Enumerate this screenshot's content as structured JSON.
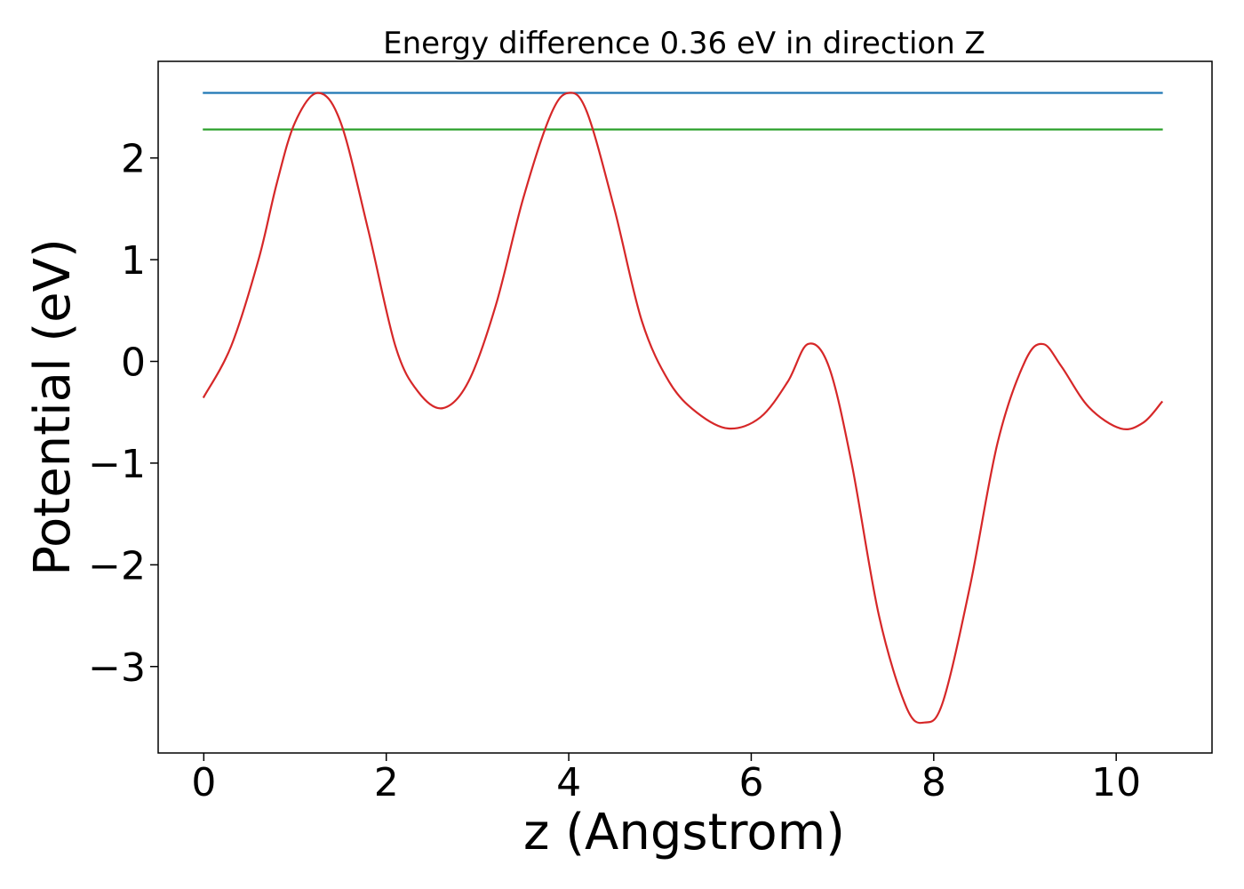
{
  "chart_data": {
    "type": "line",
    "title": "Energy difference 0.36 eV in direction Z",
    "xlabel": "z (Angstrom)",
    "ylabel": "Potential (eV)",
    "xlim": [
      -0.5,
      11.05
    ],
    "ylim": [
      -3.85,
      2.95
    ],
    "xticks": [
      0,
      2,
      4,
      6,
      8,
      10
    ],
    "xtick_labels": [
      "0",
      "2",
      "4",
      "6",
      "8",
      "10"
    ],
    "yticks": [
      -3,
      -2,
      -1,
      0,
      1,
      2
    ],
    "ytick_labels": [
      "−3",
      "−2",
      "−1",
      "0",
      "1",
      "2"
    ],
    "grid": false,
    "series": [
      {
        "color": "#1f77b4",
        "x": [
          0,
          10.5
        ],
        "y": [
          2.64,
          2.64
        ]
      },
      {
        "color": "#2ca02c",
        "x": [
          0,
          10.5
        ],
        "y": [
          2.28,
          2.28
        ]
      },
      {
        "color": "#d62728",
        "x": [
          0,
          0.3,
          0.6,
          0.8,
          1.0,
          1.25,
          1.5,
          1.8,
          2.1,
          2.35,
          2.62,
          2.9,
          3.2,
          3.5,
          3.8,
          4.0,
          4.2,
          4.5,
          4.8,
          5.1,
          5.4,
          5.75,
          6.1,
          6.4,
          6.62,
          6.85,
          7.1,
          7.4,
          7.7,
          7.9,
          8.1,
          8.4,
          8.7,
          9.0,
          9.2,
          9.4,
          9.7,
          10.05,
          10.3,
          10.5
        ],
        "y": [
          -0.35,
          0.15,
          1.0,
          1.75,
          2.35,
          2.64,
          2.35,
          1.3,
          0.15,
          -0.3,
          -0.46,
          -0.2,
          0.55,
          1.6,
          2.42,
          2.64,
          2.45,
          1.5,
          0.4,
          -0.2,
          -0.5,
          -0.66,
          -0.55,
          -0.2,
          0.17,
          -0.05,
          -1.0,
          -2.5,
          -3.4,
          -3.55,
          -3.35,
          -2.2,
          -0.8,
          0.0,
          0.17,
          -0.05,
          -0.45,
          -0.66,
          -0.6,
          -0.4
        ]
      }
    ]
  }
}
